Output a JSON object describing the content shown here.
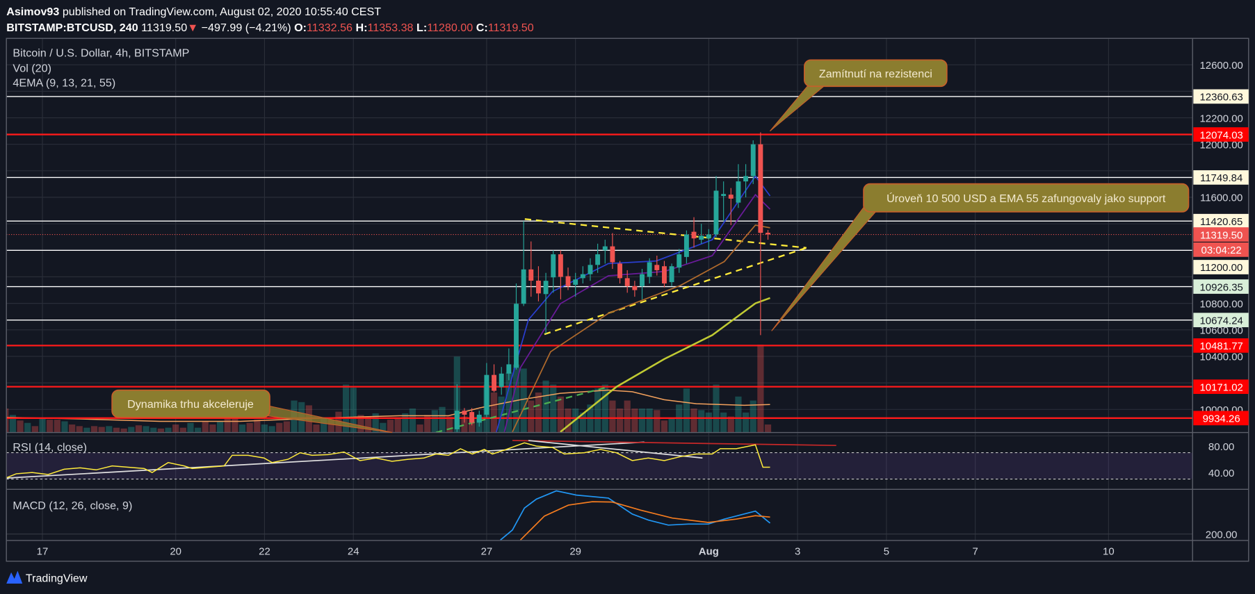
{
  "header": {
    "author": "Asimov93",
    "published": " published on TradingView.com, August 02, 2020 10:55:40 CEST",
    "symbol": "BITSTAMP:BTCUSD, 240",
    "last": " 11319.50",
    "arrow": "▼",
    "change": " −497.99 (−4.21%) ",
    "o_label": "O:",
    "o": "11332.56",
    "h_label": " H:",
    "h": "11353.38",
    "l_label": " L:",
    "l": "11280.00",
    "c_label": " C:",
    "c": "11319.50"
  },
  "legends": {
    "main": "Bitcoin / U.S. Dollar, 4h, BITSTAMP",
    "vol": "Vol (20)",
    "ema": "4EMA (9, 13, 21, 55)",
    "rsi": "RSI (14, close)",
    "macd": "MACD (12, 26, close, 9)"
  },
  "callouts": {
    "rejection": "Zamítnutí na rezistenci",
    "support": "Úroveň 10 500 USD a EMA 55 zafungovaly jako support",
    "momentum": "Dynamika trhu akceleruje"
  },
  "footer": {
    "brand": "TradingView"
  },
  "colors": {
    "up": "#26a69a",
    "down": "#ef5350",
    "bg": "#131722",
    "level_red": "#ff0000",
    "level_white": "#ffffff",
    "trend": "#ffeb3b",
    "callout": "#8b7d2f"
  },
  "chart_data": {
    "type": "candlestick",
    "title": "Bitcoin / U.S. Dollar, 4h, BITSTAMP",
    "t_unit": "days since 2020-07-17 00:00",
    "price_ticks": [
      12600,
      12200,
      12000,
      11600,
      10800,
      10600,
      10400,
      10000
    ],
    "ylim": [
      9830,
      12700
    ],
    "time_ticks": [
      {
        "label": "17",
        "t": 0
      },
      {
        "label": "20",
        "t": 3
      },
      {
        "label": "22",
        "t": 5
      },
      {
        "label": "24",
        "t": 7
      },
      {
        "label": "27",
        "t": 10
      },
      {
        "label": "29",
        "t": 12
      },
      {
        "label": "Aug",
        "t": 15
      },
      {
        "label": "3",
        "t": 17
      },
      {
        "label": "5",
        "t": 19
      },
      {
        "label": "7",
        "t": 21
      },
      {
        "label": "10",
        "t": 24
      }
    ],
    "candles": {
      "start": "2020-07-26 08:00",
      "start_t": 9.3333,
      "interval_hours": 4,
      "ohlc": [
        [
          9850,
          10190,
          9830,
          9990
        ],
        [
          9990,
          10010,
          9900,
          9960
        ],
        [
          9980,
          10010,
          9880,
          9900
        ],
        [
          9900,
          9990,
          9870,
          9960
        ],
        [
          9960,
          10350,
          9940,
          10260
        ],
        [
          10260,
          10340,
          10130,
          10140
        ],
        [
          10170,
          10320,
          10110,
          10270
        ],
        [
          10270,
          10460,
          10220,
          10340
        ],
        [
          10314,
          10950,
          10300,
          10797
        ],
        [
          10797,
          11420,
          10780,
          11056
        ],
        [
          11056,
          11267,
          10850,
          10971
        ],
        [
          10971,
          11080,
          10815,
          10875
        ],
        [
          10870,
          11030,
          10573,
          10970
        ],
        [
          10996,
          11200,
          10880,
          11170
        ],
        [
          11170,
          11200,
          10830,
          11000
        ],
        [
          11005,
          11070,
          10900,
          10930
        ],
        [
          10940,
          11030,
          10850,
          10980
        ],
        [
          10990,
          11080,
          10950,
          11020
        ],
        [
          11020,
          11140,
          10970,
          11090
        ],
        [
          11090,
          11250,
          11030,
          11170
        ],
        [
          11200,
          11280,
          11100,
          11230
        ],
        [
          11230,
          11330,
          11060,
          11110
        ],
        [
          11100,
          11120,
          10950,
          10990
        ],
        [
          10990,
          11050,
          10880,
          10930
        ],
        [
          10930,
          10970,
          10850,
          10900
        ],
        [
          10930,
          11060,
          10830,
          11020
        ],
        [
          11000,
          11140,
          10950,
          11110
        ],
        [
          11090,
          11160,
          11010,
          11050
        ],
        [
          11080,
          11120,
          10920,
          10950
        ],
        [
          10960,
          11100,
          10930,
          11080
        ],
        [
          11070,
          11210,
          11030,
          11170
        ],
        [
          11150,
          11350,
          11100,
          11320
        ],
        [
          11340,
          11450,
          11220,
          11290
        ],
        [
          11280,
          11400,
          11250,
          11310
        ],
        [
          11290,
          11360,
          11200,
          11320
        ],
        [
          11320,
          11760,
          11300,
          11650
        ],
        [
          11610,
          11720,
          11420,
          11625
        ],
        [
          11620,
          11670,
          11390,
          11590
        ],
        [
          11560,
          11850,
          11520,
          11720
        ],
        [
          11720,
          11850,
          11600,
          11760
        ],
        [
          11760,
          12030,
          11700,
          12000
        ],
        [
          12000,
          12090,
          10560,
          11332
        ],
        [
          11332.56,
          11353.38,
          11280,
          11319.5
        ]
      ]
    },
    "volume": {
      "name": "Vol (20)",
      "earlier_values": [
        3000,
        2200,
        1500,
        1200,
        800,
        1800,
        1600,
        1600,
        1400,
        1000,
        800,
        600,
        800,
        700,
        800,
        600,
        500,
        700,
        900,
        800,
        600,
        500,
        600,
        1000,
        600,
        1200,
        600,
        1400,
        1000,
        1400,
        1800,
        2000,
        1000,
        1200,
        1600,
        1000,
        800,
        1200,
        1400,
        4000,
        3800,
        3400,
        1000,
        1800,
        1600,
        2600,
        6000,
        5600,
        2200,
        2000,
        2400,
        1200,
        1600,
        1800,
        2400,
        3000,
        1000,
        2200,
        2800,
        3200,
        2000
      ],
      "earlier_directions": "dudududdudduddudduduududduudduddudduudduuddudduudduudduudduudd",
      "candle_values": [
        9500,
        2000,
        1800,
        2000,
        6000,
        5000,
        4500,
        7500,
        8500,
        8000,
        4000,
        5000,
        6500,
        6000,
        4500,
        3000,
        3000,
        2500,
        3500,
        5500,
        6000,
        4000,
        3000,
        4000,
        3000,
        3000,
        3000,
        2800,
        1500,
        1800,
        3500,
        5500,
        3000,
        2800,
        2500,
        6000,
        2500,
        2000,
        4500,
        2500,
        4000,
        11000,
        1000
      ],
      "ma": [
        [
          -0.81,
          1900
        ],
        [
          0.85,
          1700
        ],
        [
          2.65,
          1400
        ],
        [
          4.45,
          1400
        ],
        [
          6.25,
          1800
        ],
        [
          8.05,
          2100
        ],
        [
          9.14,
          2100
        ],
        [
          9.86,
          3100
        ],
        [
          10.76,
          4100
        ],
        [
          11.66,
          4900
        ],
        [
          12.74,
          5300
        ],
        [
          13.28,
          5100
        ],
        [
          14.0,
          4100
        ],
        [
          14.72,
          3600
        ],
        [
          15.8,
          3400
        ],
        [
          16.38,
          3500
        ]
      ]
    },
    "ema": [
      {
        "name": "EMA 9",
        "color": "#2a3ed0",
        "points": [
          [
            10.22,
            9830
          ],
          [
            10.94,
            10676
          ],
          [
            11.48,
            10888
          ],
          [
            12.74,
            11100
          ],
          [
            13.82,
            11120
          ],
          [
            15.08,
            11280
          ],
          [
            16.05,
            11760
          ],
          [
            16.38,
            11610
          ]
        ]
      },
      {
        "name": "EMA 13",
        "color": "#6a1b9a",
        "points": [
          [
            10.4,
            9830
          ],
          [
            10.76,
            10314
          ],
          [
            11.66,
            10797
          ],
          [
            12.74,
            11008
          ],
          [
            14.0,
            11040
          ],
          [
            15.08,
            11160
          ],
          [
            16.05,
            11620
          ],
          [
            16.38,
            11510
          ]
        ]
      },
      {
        "name": "EMA 21",
        "color": "#b06a2c",
        "points": [
          [
            10.58,
            9830
          ],
          [
            11.44,
            10435
          ],
          [
            12.74,
            10725
          ],
          [
            14.36,
            10935
          ],
          [
            15.35,
            11115
          ],
          [
            16.05,
            11390
          ],
          [
            16.38,
            11370
          ]
        ]
      },
      {
        "name": "EMA 55",
        "color": "#c0ca33",
        "points": [
          [
            11.66,
            9830
          ],
          [
            12.92,
            10170
          ],
          [
            14.0,
            10380
          ],
          [
            15.08,
            10560
          ],
          [
            16.05,
            10800
          ],
          [
            16.38,
            10840
          ]
        ]
      }
    ],
    "levels": [
      {
        "price": 12360.63,
        "label": "12360.63",
        "kind": "white"
      },
      {
        "price": 12074.03,
        "label": "12074.03",
        "kind": "red"
      },
      {
        "price": 11749.84,
        "label": "11749.84",
        "kind": "white"
      },
      {
        "price": 11420.65,
        "label": "11420.65",
        "kind": "white"
      },
      {
        "price": 11200.0,
        "label": "11200.00",
        "kind": "white"
      },
      {
        "price": 10926.35,
        "label": "10926.35",
        "kind": "green"
      },
      {
        "price": 10674.24,
        "label": "10674.24",
        "kind": "green"
      },
      {
        "price": 10481.77,
        "label": "10481.77",
        "kind": "red"
      },
      {
        "price": 10171.02,
        "label": "10171.02",
        "kind": "red"
      },
      {
        "price": 9934.26,
        "label": "9934.26",
        "kind": "red"
      }
    ],
    "current_price": {
      "price": 11319.5,
      "label": "11319.50",
      "countdown": "03:04:22"
    },
    "trendlines": [
      {
        "name": "upper",
        "color": "#ffeb3b",
        "points": [
          [
            10.86,
            11436
          ],
          [
            17.2,
            11219
          ]
        ]
      },
      {
        "name": "lower",
        "color": "#ffeb3b",
        "points": [
          [
            11.3,
            10567
          ],
          [
            17.2,
            11219
          ]
        ]
      },
      {
        "name": "volume-trend",
        "color": "#4caf50",
        "points": [
          [
            8.86,
            9826
          ],
          [
            12.74,
            10170
          ]
        ]
      }
    ],
    "rsi": {
      "name": "RSI (14, close)",
      "ticks": [
        80,
        40
      ],
      "tick_labels": [
        "80.00",
        "40.00"
      ],
      "bands": [
        70,
        30
      ],
      "points": [
        [
          -0.81,
          32
        ],
        [
          -0.59,
          38
        ],
        [
          -0.23,
          40
        ],
        [
          0.13,
          37
        ],
        [
          0.49,
          45
        ],
        [
          0.85,
          47
        ],
        [
          1.21,
          44
        ],
        [
          1.57,
          50
        ],
        [
          1.93,
          48
        ],
        [
          2.29,
          46
        ],
        [
          2.47,
          40
        ],
        [
          2.83,
          55
        ],
        [
          3.19,
          50
        ],
        [
          3.37,
          46
        ],
        [
          3.73,
          48
        ],
        [
          4.09,
          50
        ],
        [
          4.27,
          66
        ],
        [
          4.63,
          66
        ],
        [
          4.99,
          62
        ],
        [
          5.17,
          55
        ],
        [
          5.53,
          60
        ],
        [
          5.8,
          70
        ],
        [
          6.07,
          66
        ],
        [
          6.43,
          67
        ],
        [
          6.79,
          71
        ],
        [
          7.15,
          58
        ],
        [
          7.51,
          62
        ],
        [
          7.87,
          57
        ],
        [
          8.23,
          60
        ],
        [
          8.59,
          62
        ],
        [
          8.86,
          68
        ],
        [
          9.14,
          66
        ],
        [
          9.41,
          76
        ],
        [
          9.68,
          68
        ],
        [
          9.95,
          75
        ],
        [
          10.13,
          68
        ],
        [
          10.4,
          74
        ],
        [
          10.85,
          85
        ],
        [
          11.12,
          80
        ],
        [
          11.48,
          78
        ],
        [
          11.75,
          68
        ],
        [
          12.2,
          70
        ],
        [
          12.56,
          75
        ],
        [
          12.92,
          70
        ],
        [
          13.28,
          58
        ],
        [
          13.64,
          62
        ],
        [
          14.0,
          58
        ],
        [
          14.36,
          64
        ],
        [
          14.72,
          68
        ],
        [
          15.08,
          68
        ],
        [
          15.26,
          76
        ],
        [
          15.62,
          76
        ],
        [
          16.05,
          82
        ],
        [
          16.22,
          48
        ],
        [
          16.38,
          48
        ]
      ],
      "trendlines": [
        {
          "color": "#e0e0e0",
          "points": [
            [
              -0.81,
              31.5
            ],
            [
              13.55,
              86
            ]
          ]
        },
        {
          "color": "#c62828",
          "points": [
            [
              10.58,
              88.5
            ],
            [
              17.87,
              81
            ]
          ]
        },
        {
          "color": "#e0e0e0",
          "points": [
            [
              10.94,
              88.5
            ],
            [
              14.86,
              62
            ]
          ]
        }
      ]
    },
    "macd": {
      "name": "MACD (12, 26, close, 9)",
      "ticks": [
        200
      ],
      "tick_labels": [
        "200.00"
      ],
      "macd": [
        [
          10.31,
          170
        ],
        [
          10.58,
          220
        ],
        [
          10.85,
          330
        ],
        [
          11.12,
          375
        ],
        [
          11.57,
          416
        ],
        [
          12.02,
          395
        ],
        [
          12.74,
          380
        ],
        [
          13.28,
          300
        ],
        [
          13.64,
          270
        ],
        [
          14.09,
          245
        ],
        [
          14.54,
          250
        ],
        [
          14.99,
          250
        ],
        [
          15.35,
          275
        ],
        [
          16.05,
          315
        ],
        [
          16.38,
          255
        ]
      ],
      "signal": [
        [
          10.76,
          170
        ],
        [
          11.3,
          290
        ],
        [
          11.84,
          345
        ],
        [
          12.38,
          362
        ],
        [
          12.83,
          360
        ],
        [
          13.46,
          320
        ],
        [
          14.18,
          280
        ],
        [
          14.99,
          258
        ],
        [
          15.62,
          275
        ],
        [
          16.05,
          292
        ],
        [
          16.38,
          285
        ]
      ]
    }
  }
}
